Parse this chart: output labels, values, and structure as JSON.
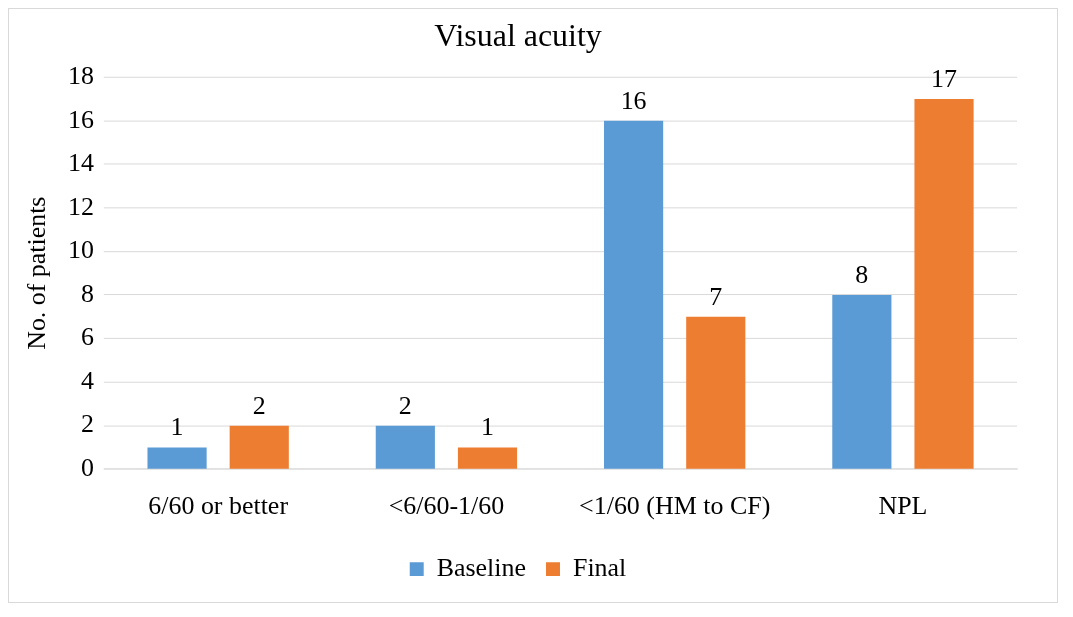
{
  "chart_data": {
    "type": "bar",
    "title": "Visual acuity",
    "ylabel": "No. of patients",
    "categories": [
      "6/60 or better",
      "<6/60-1/60",
      "<1/60 (HM to CF)",
      "NPL"
    ],
    "series": [
      {
        "name": "Baseline",
        "color": "#5b9bd5",
        "values": [
          1,
          2,
          16,
          8
        ]
      },
      {
        "name": "Final",
        "color": "#ed7d31",
        "values": [
          2,
          1,
          7,
          17
        ]
      }
    ],
    "ylim": [
      0,
      18
    ],
    "yticks": [
      0,
      2,
      4,
      6,
      8,
      10,
      12,
      14,
      16,
      18
    ],
    "grid": "y",
    "legend": "bottom",
    "data_labels": true
  }
}
